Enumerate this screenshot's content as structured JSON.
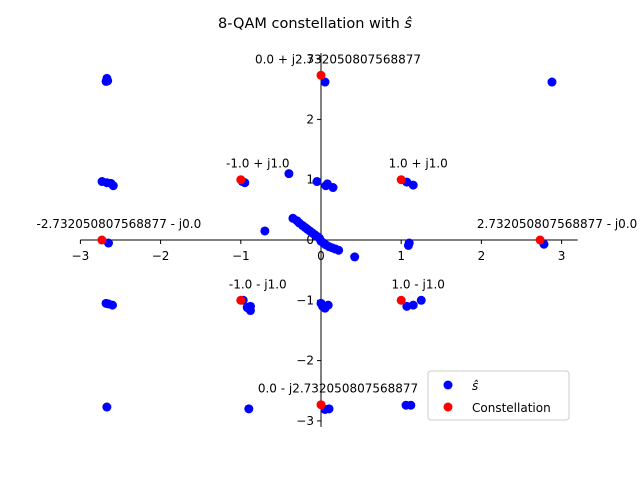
{
  "chart_data": {
    "type": "scatter",
    "title": "8-QAM constellation with ",
    "title_symbol": "ŝ",
    "xlabel": "",
    "ylabel": "",
    "xlim": [
      -3,
      3.2
    ],
    "ylim": [
      -3.1,
      3.1
    ],
    "xticks": [
      "−3",
      "−2",
      "−1",
      "0",
      "1",
      "2",
      "3"
    ],
    "yticks": [
      "−3",
      "−2",
      "−1",
      "0",
      "1",
      "2",
      "3"
    ],
    "grid": false,
    "legend_position": "lower-right",
    "series": [
      {
        "name": "ŝ",
        "color": "#0000ff",
        "points": [
          [
            -2.67,
            2.68
          ],
          [
            -2.66,
            2.64
          ],
          [
            -2.68,
            2.63
          ],
          [
            -2.73,
            0.97
          ],
          [
            -2.67,
            0.95
          ],
          [
            -2.62,
            0.94
          ],
          [
            -2.59,
            0.9
          ],
          [
            -2.65,
            -0.05
          ],
          [
            -2.68,
            -1.05
          ],
          [
            -2.65,
            -1.06
          ],
          [
            -2.6,
            -1.08
          ],
          [
            -2.67,
            -2.77
          ],
          [
            0.05,
            2.62
          ],
          [
            2.88,
            2.62
          ],
          [
            -0.95,
            0.95
          ],
          [
            -0.98,
            0.97
          ],
          [
            -0.4,
            1.1
          ],
          [
            -0.7,
            0.15
          ],
          [
            -0.05,
            0.97
          ],
          [
            0.08,
            0.93
          ],
          [
            0.06,
            0.9
          ],
          [
            0.15,
            0.87
          ],
          [
            1.07,
            0.96
          ],
          [
            1.15,
            0.91
          ],
          [
            -0.35,
            0.36
          ],
          [
            -0.3,
            0.32
          ],
          [
            -0.27,
            0.28
          ],
          [
            -0.23,
            0.24
          ],
          [
            -0.2,
            0.21
          ],
          [
            -0.17,
            0.18
          ],
          [
            -0.14,
            0.15
          ],
          [
            -0.11,
            0.12
          ],
          [
            -0.08,
            0.09
          ],
          [
            -0.05,
            0.06
          ],
          [
            -0.02,
            0.03
          ],
          [
            0.0,
            -0.02
          ],
          [
            0.03,
            -0.05
          ],
          [
            0.06,
            -0.08
          ],
          [
            0.1,
            -0.11
          ],
          [
            0.14,
            -0.13
          ],
          [
            0.18,
            -0.15
          ],
          [
            0.22,
            -0.17
          ],
          [
            0.42,
            -0.28
          ],
          [
            1.1,
            -0.05
          ],
          [
            1.09,
            -0.09
          ],
          [
            2.78,
            -0.07
          ],
          [
            -0.97,
            -1.0
          ],
          [
            -0.92,
            -1.12
          ],
          [
            -0.88,
            -1.17
          ],
          [
            -0.88,
            -1.1
          ],
          [
            0.0,
            -1.05
          ],
          [
            0.02,
            -1.1
          ],
          [
            0.05,
            -1.13
          ],
          [
            0.09,
            -1.08
          ],
          [
            1.07,
            -1.1
          ],
          [
            1.15,
            -1.08
          ],
          [
            1.25,
            -1.0
          ],
          [
            -0.9,
            -2.8
          ],
          [
            0.05,
            -2.81
          ],
          [
            0.1,
            -2.8
          ],
          [
            1.06,
            -2.74
          ],
          [
            1.12,
            -2.74
          ]
        ]
      },
      {
        "name": "Constellation",
        "color": "#ff0000",
        "points": [
          [
            0.0,
            2.732050807568877
          ],
          [
            -1.0,
            1.0
          ],
          [
            1.0,
            1.0
          ],
          [
            -2.732050807568877,
            0.0
          ],
          [
            2.732050807568877,
            0.0
          ],
          [
            -1.0,
            -1.0
          ],
          [
            1.0,
            -1.0
          ],
          [
            0.0,
            -2.732050807568877
          ]
        ]
      }
    ],
    "annotations": [
      {
        "text": "0.0 + j2.732050807568877",
        "x": 0.0,
        "y": 2.732050807568877
      },
      {
        "text": "-1.0 + j1.0",
        "x": -1.0,
        "y": 1.0
      },
      {
        "text": "1.0 + j1.0",
        "x": 1.0,
        "y": 1.0
      },
      {
        "text": "-2.732050807568877 - j0.0",
        "x": -2.732050807568877,
        "y": 0.0
      },
      {
        "text": "2.732050807568877 - j0.0",
        "x": 2.732050807568877,
        "y": 0.0
      },
      {
        "text": "-1.0 - j1.0",
        "x": -1.0,
        "y": -1.0
      },
      {
        "text": "1.0 - j1.0",
        "x": 1.0,
        "y": -1.0
      },
      {
        "text": "0.0 - j2.732050807568877",
        "x": 0.0,
        "y": -2.732050807568877
      }
    ]
  }
}
